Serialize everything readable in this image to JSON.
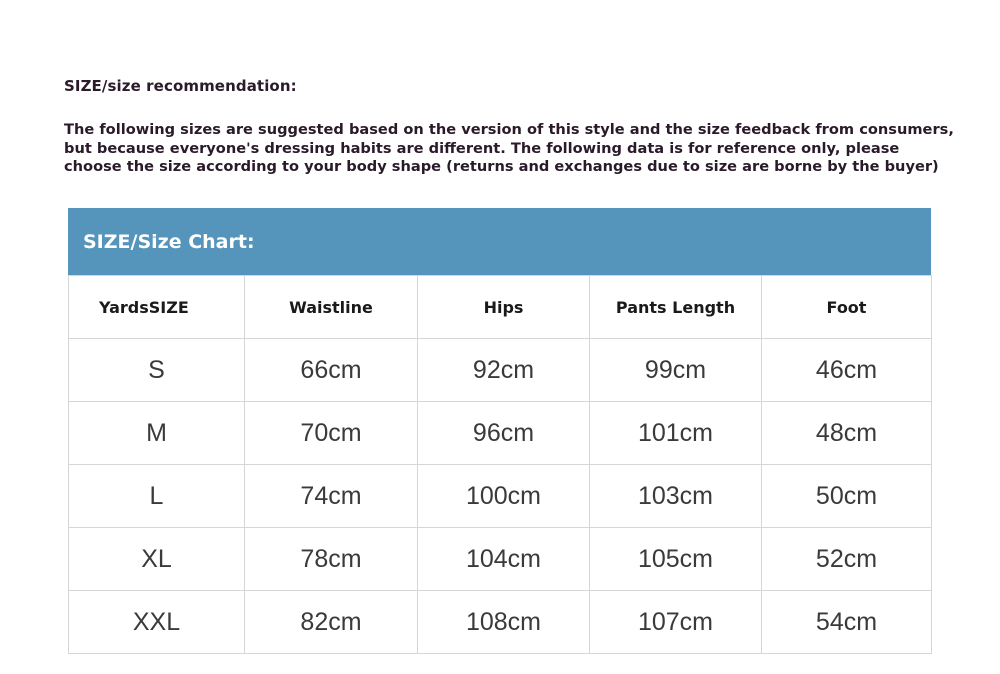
{
  "title": "SIZE/size recommendation:",
  "intro_lines": [
    "The following sizes are suggested based on the version of this style and the size feedback from consumers,",
    "but because everyone's dressing habits are different. The following data is for reference only, please",
    "choose the size according to your body shape (returns and exchanges due to size are borne by the buyer)"
  ],
  "chart": {
    "heading": "SIZE/Size Chart:",
    "header_color": "#5594bb",
    "columns": [
      "YardsSIZE",
      "Waistline",
      "Hips",
      "Pants Length",
      "Foot"
    ],
    "rows": [
      [
        "S",
        "66cm",
        "92cm",
        "99cm",
        "46cm"
      ],
      [
        "M",
        "70cm",
        "96cm",
        "101cm",
        "48cm"
      ],
      [
        "L",
        "74cm",
        "100cm",
        "103cm",
        "50cm"
      ],
      [
        "XL",
        "78cm",
        "104cm",
        "105cm",
        "52cm"
      ],
      [
        "XXL",
        "82cm",
        "108cm",
        "107cm",
        "54cm"
      ]
    ]
  }
}
